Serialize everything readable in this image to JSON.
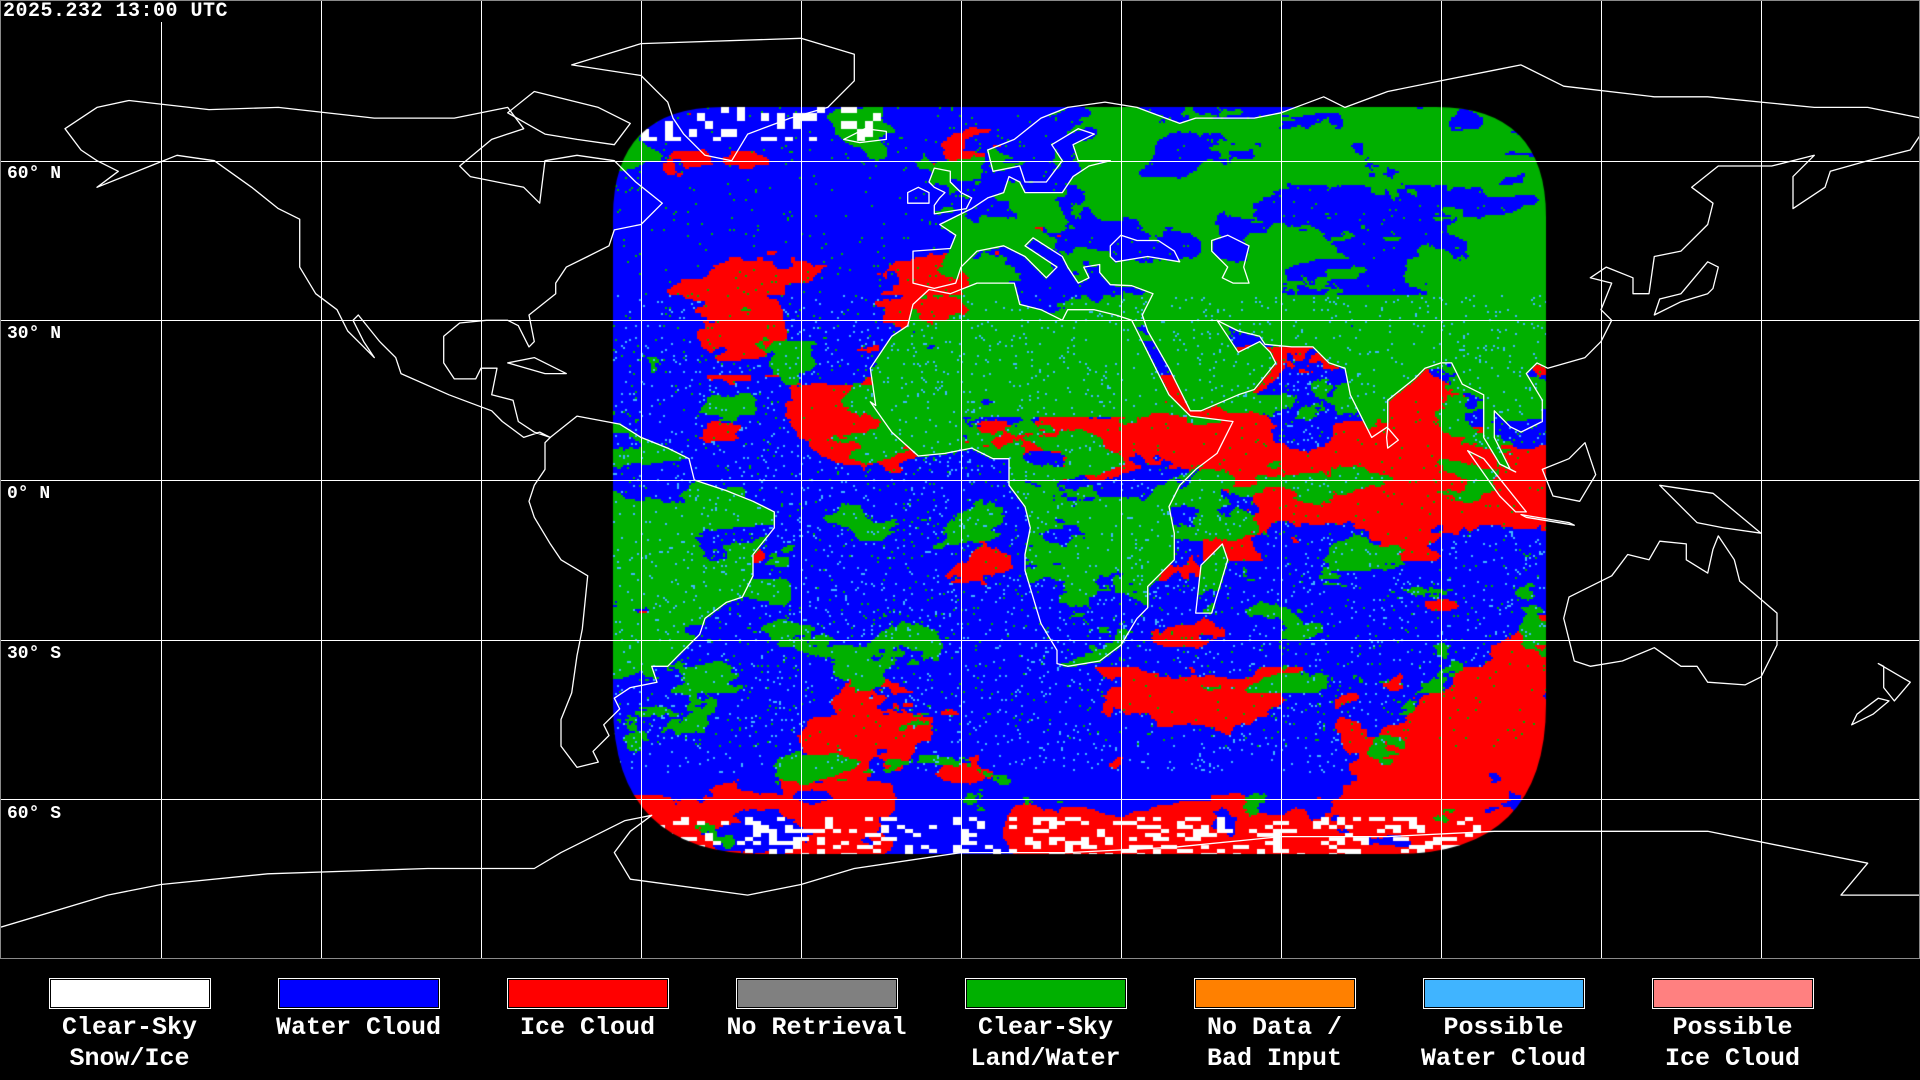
{
  "title": "2025.232 13:00 UTC",
  "map": {
    "grid_spacing_deg": 30,
    "lat_labels": [
      "60° N",
      "30° N",
      "0° N",
      "30° S",
      "60° S"
    ],
    "line_color": "#ffffff"
  },
  "legend": [
    {
      "line1": "Clear-Sky",
      "line2": "Snow/Ice",
      "color": "#ffffff"
    },
    {
      "line1": "Water Cloud",
      "line2": "",
      "color": "#0000ff"
    },
    {
      "line1": "Ice Cloud",
      "line2": "",
      "color": "#ff0000"
    },
    {
      "line1": "No Retrieval",
      "line2": "",
      "color": "#808080"
    },
    {
      "line1": "Clear-Sky",
      "line2": "Land/Water",
      "color": "#00b000"
    },
    {
      "line1": "No Data /",
      "line2": "Bad Input",
      "color": "#ff8000"
    },
    {
      "line1": "Possible",
      "line2": "Water Cloud",
      "color": "#40b4ff"
    },
    {
      "line1": "Possible",
      "line2": "Ice Cloud",
      "color": "#ff8080"
    }
  ]
}
